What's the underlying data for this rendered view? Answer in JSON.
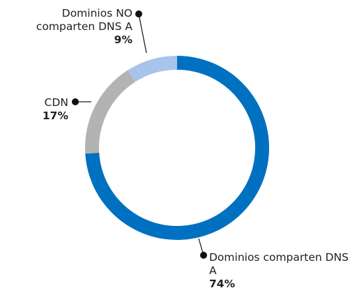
{
  "chart_data": {
    "type": "donut",
    "categories": [
      "Dominios comparten DNS A",
      "CDN",
      "Dominios NO comparten DNS A"
    ],
    "values": [
      74,
      17,
      9
    ],
    "value_labels": [
      "74%",
      "17%",
      "9%"
    ],
    "colors": [
      "#0070c0",
      "#b3b3b3",
      "#a9c4eb"
    ]
  }
}
